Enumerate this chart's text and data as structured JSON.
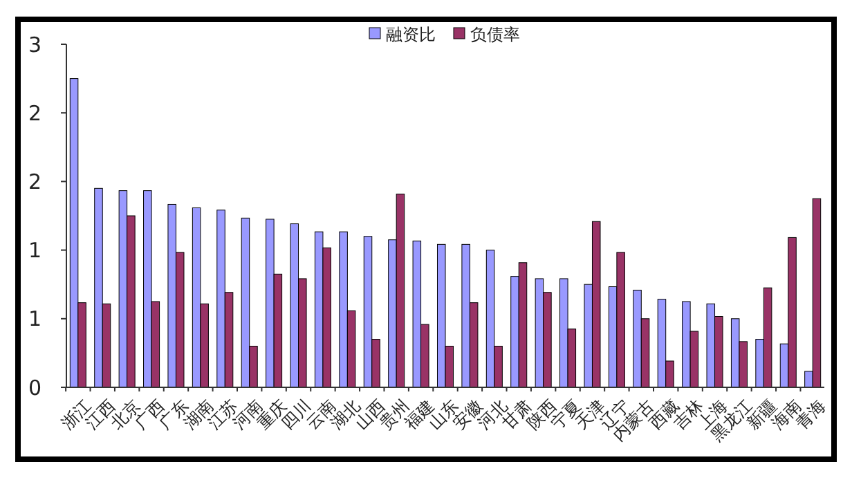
{
  "chart_data": {
    "type": "bar",
    "categories": [
      "浙江",
      "江西",
      "北京",
      "广西",
      "广东",
      "湖南",
      "江苏",
      "河南",
      "重庆",
      "四川",
      "云南",
      "湖北",
      "山西",
      "贵州",
      "福建",
      "山东",
      "安徽",
      "河北",
      "甘肃",
      "陕西",
      "宁夏",
      "天津",
      "辽宁",
      "内蒙古",
      "西藏",
      "吉林",
      "上海",
      "黑龙江",
      "新疆",
      "海南",
      "青海"
    ],
    "series": [
      {
        "name": "融资比",
        "color": "#9999ff",
        "values": [
          2.7,
          1.74,
          1.72,
          1.72,
          1.6,
          1.57,
          1.55,
          1.48,
          1.47,
          1.43,
          1.36,
          1.36,
          1.32,
          1.29,
          1.28,
          1.25,
          1.25,
          1.2,
          0.97,
          0.95,
          0.95,
          0.9,
          0.88,
          0.85,
          0.77,
          0.75,
          0.73,
          0.6,
          0.42,
          0.38,
          0.14
        ]
      },
      {
        "name": "负债率",
        "color": "#993366",
        "values": [
          0.74,
          0.73,
          1.5,
          0.75,
          1.18,
          0.73,
          0.83,
          0.36,
          0.99,
          0.95,
          1.22,
          0.67,
          0.42,
          1.69,
          0.55,
          0.36,
          0.74,
          0.36,
          1.09,
          0.83,
          0.51,
          1.45,
          1.18,
          0.6,
          0.23,
          0.49,
          0.62,
          0.4,
          0.87,
          1.31,
          1.65
        ]
      }
    ],
    "ylim": [
      0,
      3
    ],
    "yticks": [
      {
        "value": 0,
        "label": "0"
      },
      {
        "value": 0.6,
        "label": "1"
      },
      {
        "value": 1.2,
        "label": "1"
      },
      {
        "value": 1.8,
        "label": "2"
      },
      {
        "value": 2.4,
        "label": "2"
      },
      {
        "value": 3,
        "label": "3"
      }
    ],
    "grid": false,
    "legend": "top"
  }
}
